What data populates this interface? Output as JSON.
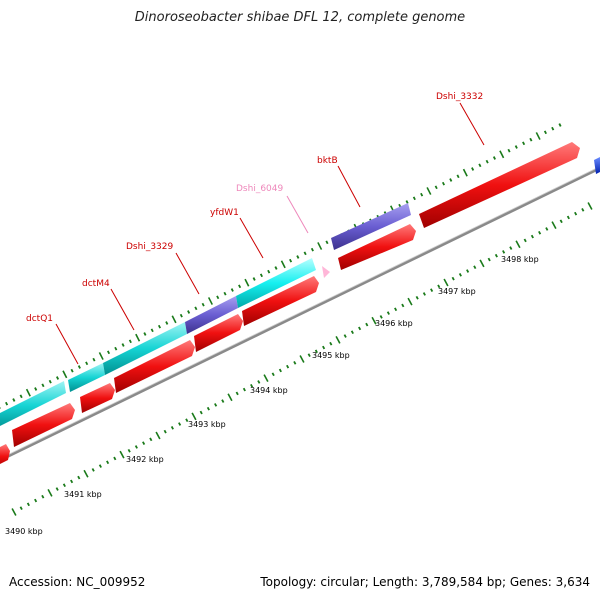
{
  "title": "Dinoroseobacter shibae DFL 12, complete genome",
  "footer": {
    "accession": "Accession: NC_009952",
    "summary": "Topology: circular; Length: 3,789,584 bp; Genes: 3,634"
  },
  "colors": {
    "forward_gene": "#00dede",
    "forward_alt": "#6b5fd0",
    "reverse_gene": "#ee1111",
    "backbone": "#888888",
    "tick": "#1a7a1a",
    "label_red": "#cc0000",
    "label_pink": "#ee88bb"
  },
  "genes": [
    {
      "name": "dctQ1",
      "color": "label_red"
    },
    {
      "name": "dctM4",
      "color": "label_red"
    },
    {
      "name": "Dshi_3329",
      "color": "label_red"
    },
    {
      "name": "yfdW1",
      "color": "label_red"
    },
    {
      "name": "Dshi_6049",
      "color": "label_pink"
    },
    {
      "name": "bktB",
      "color": "label_red"
    },
    {
      "name": "Dshi_3332",
      "color": "label_red"
    }
  ],
  "ticks": [
    "3490 kbp",
    "3491 kbp",
    "3492 kbp",
    "3493 kbp",
    "3494 kbp",
    "3495 kbp",
    "3496 kbp",
    "3497 kbp",
    "3498 kbp"
  ]
}
